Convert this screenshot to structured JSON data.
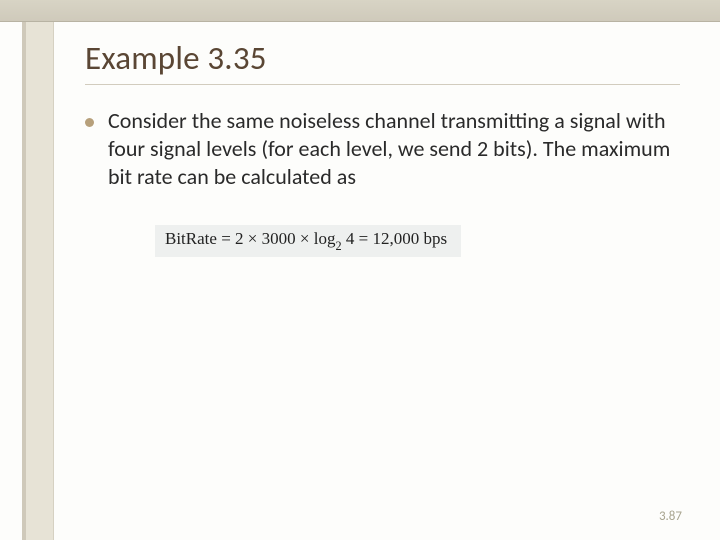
{
  "slide": {
    "title": "Example 3.35",
    "bullet_text": "Consider the same noiseless channel transmitting a signal with four signal levels (for each level, we send 2 bits). The maximum bit rate can be calculated as",
    "formula": {
      "lhs": "BitRate",
      "eq": "=",
      "factor1": "2",
      "times": "×",
      "factor2": "3000",
      "log_label": "log",
      "log_base": "2",
      "log_arg": "4",
      "result": "12,000 bps"
    },
    "page_number": "3.87"
  },
  "style": {
    "title_color": "#5a4634",
    "bullet_color": "#b7a07b",
    "formula_bg": "#eef0ef",
    "topbar_bg": "#d4cfc0",
    "sidebar_bg": "#e7e3d6"
  }
}
